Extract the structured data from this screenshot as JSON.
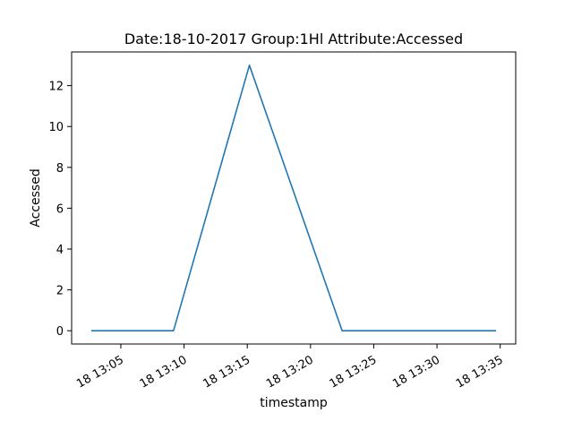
{
  "chart_data": {
    "type": "line",
    "title": "Date:18-10-2017  Group:1Hl Attribute:Accessed",
    "xlabel": "timestamp",
    "ylabel": "Accessed",
    "x": [
      "13:02:40",
      "13:09:10",
      "13:15:10",
      "13:22:30",
      "13:34:40"
    ],
    "series": [
      {
        "values": [
          0,
          0,
          13,
          0,
          0
        ],
        "color": "#1f77b4"
      }
    ],
    "xlim": [
      "13:02:40",
      "13:34:40"
    ],
    "ylim": [
      -0.65,
      13.65
    ],
    "x_ticks": [
      {
        "t": "13:05:00",
        "label": "18 13:05"
      },
      {
        "t": "13:10:00",
        "label": "18 13:10"
      },
      {
        "t": "13:15:00",
        "label": "18 13:15"
      },
      {
        "t": "13:20:00",
        "label": "18 13:20"
      },
      {
        "t": "13:25:00",
        "label": "18 13:25"
      },
      {
        "t": "13:30:00",
        "label": "18 13:30"
      },
      {
        "t": "13:35:00",
        "label": "18 13:35"
      }
    ],
    "y_ticks": [
      0,
      2,
      4,
      6,
      8,
      10,
      12
    ],
    "grid": false,
    "legend": "none"
  }
}
